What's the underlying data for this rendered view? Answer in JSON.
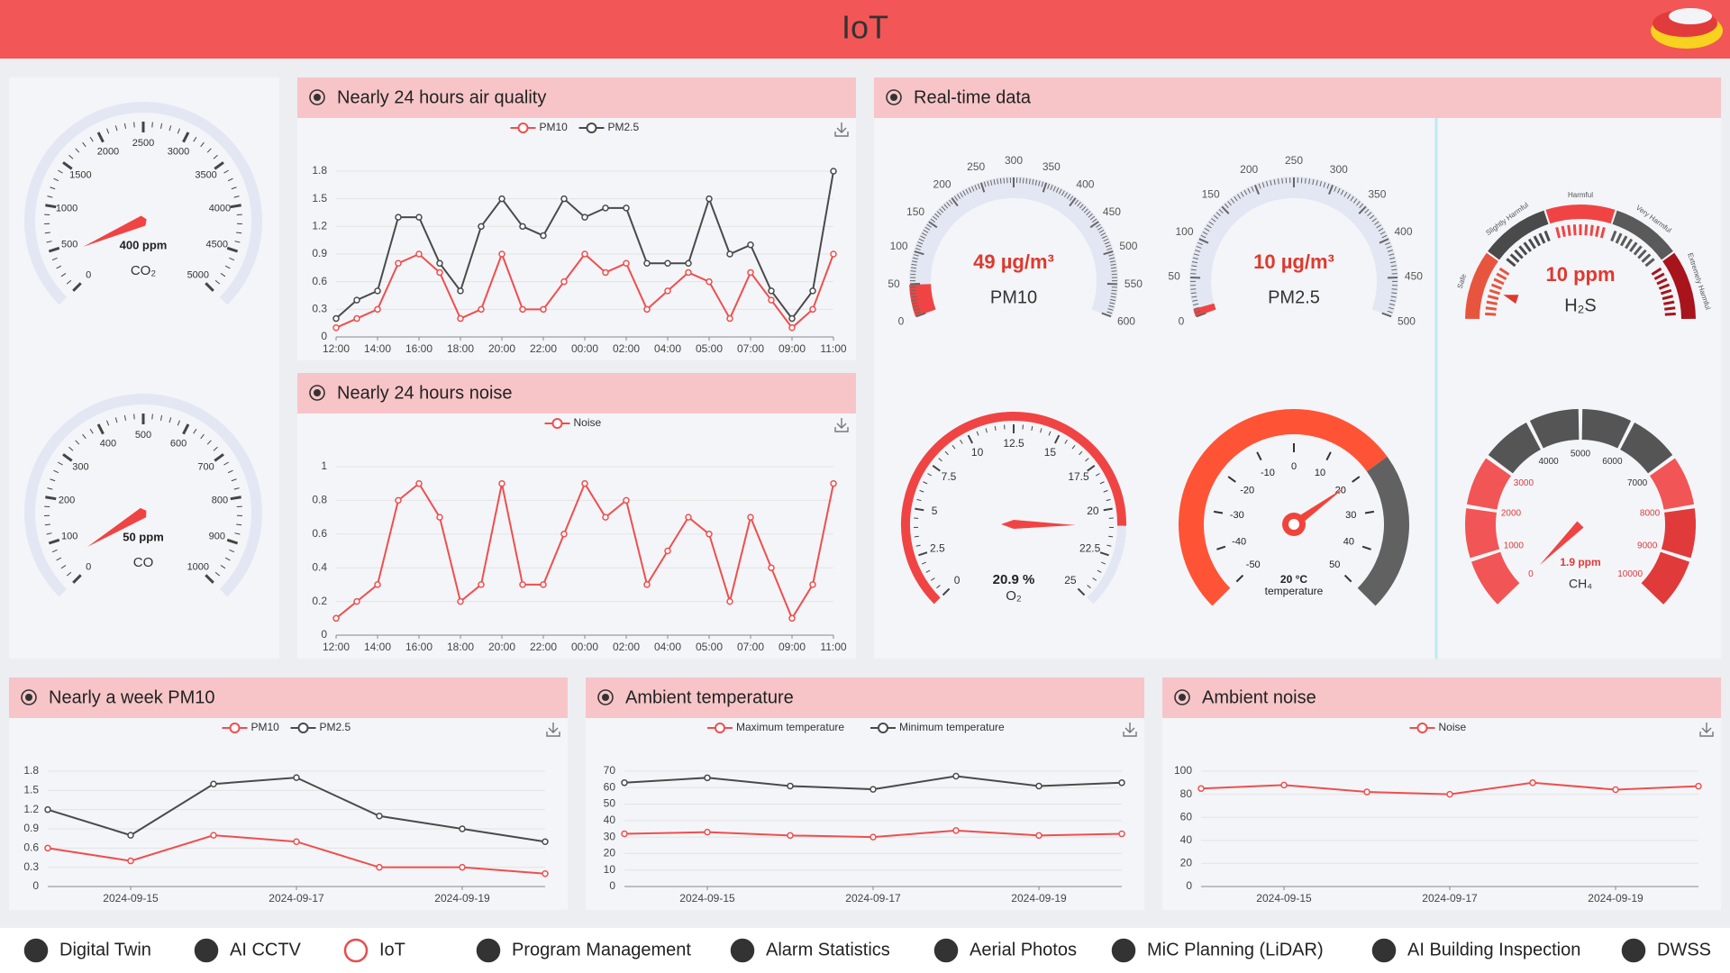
{
  "header": {
    "title": "IoT"
  },
  "real_time_panel": {
    "title": "Real-time data"
  },
  "nav": {
    "items": [
      "Digital Twin",
      "AI CCTV",
      "IoT",
      "Program Management",
      "Alarm Statistics",
      "Aerial Photos",
      "MiC Planning (LiDAR)",
      "AI Building Inspection",
      "DWSS"
    ]
  },
  "chart_data": [
    {
      "type": "gauge",
      "name": "CO₂",
      "values": [
        400
      ],
      "value_labels": [
        "400 ppm"
      ],
      "range": [
        0,
        5000
      ],
      "ticks": [
        0,
        500,
        1000,
        1500,
        2000,
        2500,
        3000,
        3500,
        4000,
        4500,
        5000
      ],
      "color": "#f04444"
    },
    {
      "type": "gauge",
      "name": "CO",
      "values": [
        50
      ],
      "value_labels": [
        "50 ppm"
      ],
      "range": [
        0,
        1000
      ],
      "ticks": [
        0,
        100,
        200,
        300,
        400,
        500,
        600,
        700,
        800,
        900,
        1000
      ],
      "color": "#f04444"
    },
    {
      "type": "line",
      "title": "Nearly 24 hours air quality",
      "categories": [
        "12:00",
        null,
        "14:00",
        null,
        "16:00",
        null,
        "18:00",
        null,
        "20:00",
        null,
        "22:00",
        null,
        "00:00",
        null,
        "02:00",
        null,
        "04:00",
        null,
        "05:00",
        null,
        "07:00",
        null,
        "09:00",
        null,
        "11:00"
      ],
      "series": [
        {
          "name": "PM10",
          "color": "#f04e4e",
          "values": [
            0.1,
            0.2,
            0.3,
            0.8,
            0.9,
            0.7,
            0.2,
            0.3,
            0.9,
            0.3,
            0.3,
            0.6,
            0.9,
            0.7,
            0.8,
            0.3,
            0.5,
            0.7,
            0.6,
            0.2,
            0.7,
            0.4,
            0.1,
            0.3,
            0.9
          ]
        },
        {
          "name": "PM2.5",
          "color": "#4a4a4a",
          "values": [
            0.2,
            0.4,
            0.5,
            1.3,
            1.3,
            0.8,
            0.5,
            1.2,
            1.5,
            1.2,
            1.1,
            1.5,
            1.3,
            1.4,
            1.4,
            0.8,
            0.8,
            0.8,
            1.5,
            0.9,
            1.0,
            0.5,
            0.2,
            0.5,
            1.8
          ]
        }
      ],
      "ylim": [
        0,
        1.8
      ],
      "yticks": [
        0,
        0.3,
        0.6,
        0.9,
        1.2,
        1.5,
        1.8
      ],
      "grid": true,
      "legend": "top"
    },
    {
      "type": "line",
      "title": "Nearly 24 hours noise",
      "categories": [
        "12:00",
        null,
        "14:00",
        null,
        "16:00",
        null,
        "18:00",
        null,
        "20:00",
        null,
        "22:00",
        null,
        "00:00",
        null,
        "02:00",
        null,
        "04:00",
        null,
        "05:00",
        null,
        "07:00",
        null,
        "09:00",
        null,
        "11:00"
      ],
      "series": [
        {
          "name": "Noise",
          "color": "#f04e4e",
          "values": [
            0.1,
            0.2,
            0.3,
            0.8,
            0.9,
            0.7,
            0.2,
            0.3,
            0.9,
            0.3,
            0.3,
            0.6,
            0.9,
            0.7,
            0.8,
            0.3,
            0.5,
            0.7,
            0.6,
            0.2,
            0.7,
            0.4,
            0.1,
            0.3,
            0.9
          ]
        }
      ],
      "ylim": [
        0,
        1
      ],
      "yticks": [
        0,
        0.2,
        0.4,
        0.6,
        0.8,
        1
      ],
      "grid": true,
      "legend": "top"
    },
    {
      "type": "gauge",
      "name": "PM10",
      "values": [
        49
      ],
      "value_labels": [
        "49 µg/m³"
      ],
      "range": [
        0,
        600
      ],
      "ticks": [
        0,
        50,
        100,
        150,
        200,
        250,
        300,
        350,
        400,
        450,
        500,
        550,
        600
      ],
      "color": "#f04444"
    },
    {
      "type": "gauge",
      "name": "PM2.5",
      "values": [
        10
      ],
      "value_labels": [
        "10 µg/m³"
      ],
      "range": [
        0,
        500
      ],
      "ticks": [
        0,
        50,
        100,
        150,
        200,
        250,
        300,
        350,
        400,
        450,
        500
      ],
      "color": "#f04444"
    },
    {
      "type": "gauge",
      "name": "H₂S",
      "values": [
        10
      ],
      "value_labels": [
        "10 ppm"
      ],
      "range": [
        0,
        100
      ],
      "segments": [
        "Safe",
        "Slightly Harmful",
        "Harmful",
        "Very Harmful",
        "Extremely Harmful"
      ],
      "color": "#e0382e"
    },
    {
      "type": "gauge",
      "name": "O₂",
      "values": [
        20.9
      ],
      "value_labels": [
        "20.9 %"
      ],
      "range": [
        0,
        25
      ],
      "ticks": [
        0,
        2.5,
        5,
        7.5,
        10,
        12.5,
        15,
        17.5,
        20,
        22.5,
        25
      ],
      "color": "#f04444"
    },
    {
      "type": "gauge",
      "name": "temperature",
      "values": [
        20
      ],
      "value_labels": [
        "20 °C"
      ],
      "range": [
        -50,
        50
      ],
      "ticks": [
        -50,
        -40,
        -30,
        -20,
        -10,
        0,
        10,
        20,
        30,
        40,
        50
      ],
      "color": "#ff5336"
    },
    {
      "type": "gauge",
      "name": "CH₄",
      "values": [
        1.9
      ],
      "value_labels": [
        "1.9 ppm"
      ],
      "range": [
        0,
        10000
      ],
      "ticks": [
        0,
        1000,
        2000,
        3000,
        4000,
        5000,
        6000,
        7000,
        8000,
        9000,
        10000
      ],
      "color": "#ef4444"
    },
    {
      "type": "line",
      "title": "Nearly a week PM10",
      "categories": [
        null,
        "2024-09-15",
        null,
        "2024-09-17",
        null,
        "2024-09-19",
        null
      ],
      "series": [
        {
          "name": "PM10",
          "color": "#f04e4e",
          "values": [
            0.6,
            0.4,
            0.8,
            0.7,
            0.3,
            0.3,
            0.2
          ]
        },
        {
          "name": "PM2.5",
          "color": "#4a4a4a",
          "values": [
            1.2,
            0.8,
            1.6,
            1.7,
            1.1,
            0.9,
            0.7
          ]
        }
      ],
      "ylim": [
        0,
        1.8
      ],
      "yticks": [
        0,
        0.3,
        0.6,
        0.9,
        1.2,
        1.5,
        1.8
      ],
      "grid": true,
      "legend": "top"
    },
    {
      "type": "line",
      "title": "Ambient temperature",
      "categories": [
        null,
        "2024-09-15",
        null,
        "2024-09-17",
        null,
        "2024-09-19",
        null
      ],
      "series": [
        {
          "name": "Maximum temperature",
          "color": "#f04e4e",
          "values": [
            32,
            33,
            31,
            30,
            34,
            31,
            32
          ]
        },
        {
          "name": "Minimum temperature",
          "color": "#4a4a4a",
          "values": [
            63,
            66,
            61,
            59,
            67,
            61,
            63
          ]
        }
      ],
      "ylim": [
        0,
        70
      ],
      "yticks": [
        0,
        10,
        20,
        30,
        40,
        50,
        60,
        70
      ],
      "grid": true,
      "legend": "top"
    },
    {
      "type": "line",
      "title": "Ambient noise",
      "categories": [
        null,
        "2024-09-15",
        null,
        "2024-09-17",
        null,
        "2024-09-19",
        null
      ],
      "series": [
        {
          "name": "Noise",
          "color": "#f04e4e",
          "values": [
            85,
            88,
            82,
            80,
            90,
            84,
            87
          ]
        }
      ],
      "ylim": [
        0,
        100
      ],
      "yticks": [
        0,
        20,
        40,
        60,
        80,
        100
      ],
      "grid": true,
      "legend": "top"
    }
  ]
}
